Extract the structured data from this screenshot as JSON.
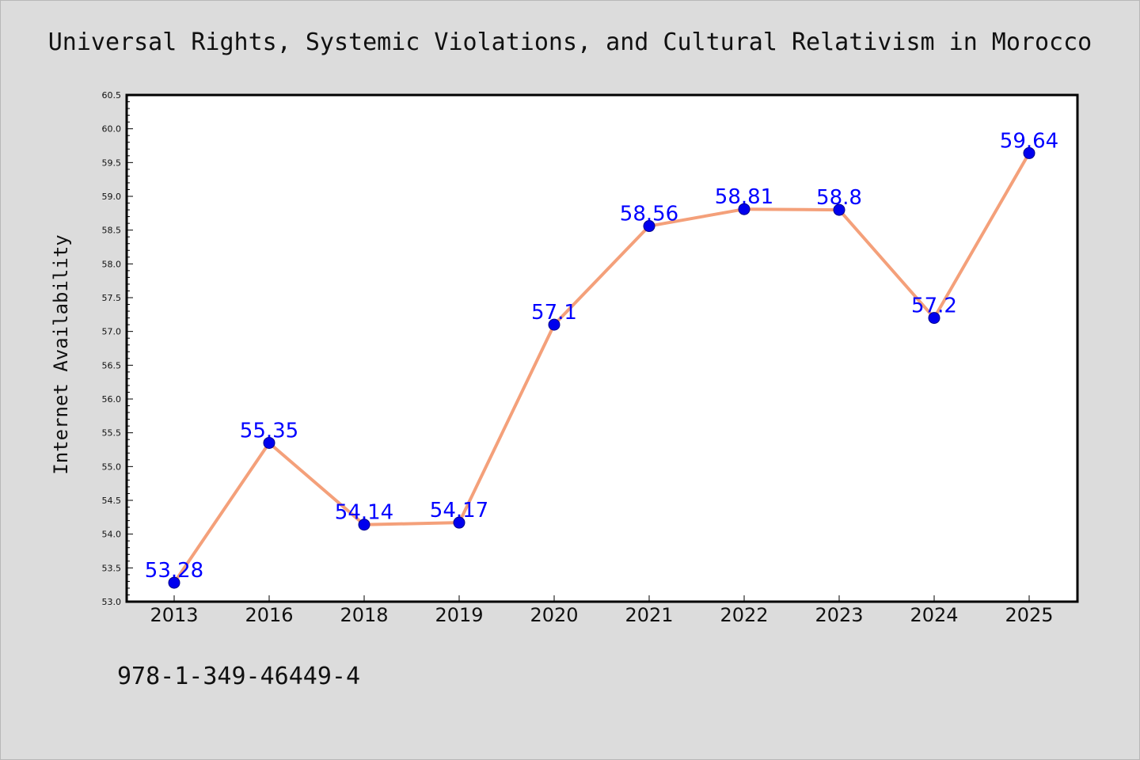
{
  "chart_data": {
    "type": "line",
    "title": "Universal Rights, Systemic Violations, and Cultural Relativism in Morocco",
    "xlabel": "",
    "ylabel": "Internet Availability",
    "categories": [
      "2013",
      "2016",
      "2018",
      "2019",
      "2020",
      "2021",
      "2022",
      "2023",
      "2024",
      "2025"
    ],
    "series": [
      {
        "values": [
          53.28,
          55.35,
          54.14,
          54.17,
          57.1,
          58.56,
          58.81,
          58.8,
          57.2,
          59.64
        ],
        "labels": [
          "53.28",
          "55.35",
          "54.14",
          "54.17",
          "57.1",
          "58.56",
          "58.81",
          "58.8",
          "57.2",
          "59.64"
        ]
      }
    ],
    "ylim": [
      53.0,
      60.5
    ],
    "yticks": [
      "53.0",
      "53.5",
      "54.0",
      "54.5",
      "55.0",
      "55.5",
      "56.0",
      "56.5",
      "57.0",
      "57.5",
      "58.0",
      "58.5",
      "59.0",
      "59.5",
      "60.0",
      "60.5"
    ],
    "grid": false,
    "colors": {
      "line": "#f4a07a",
      "marker": "#0000ee",
      "labels": "#0000ff",
      "background": "#dcdcdc",
      "plot_background": "#ffffff"
    }
  },
  "footer": {
    "isbn": "978-1-349-46449-4"
  }
}
